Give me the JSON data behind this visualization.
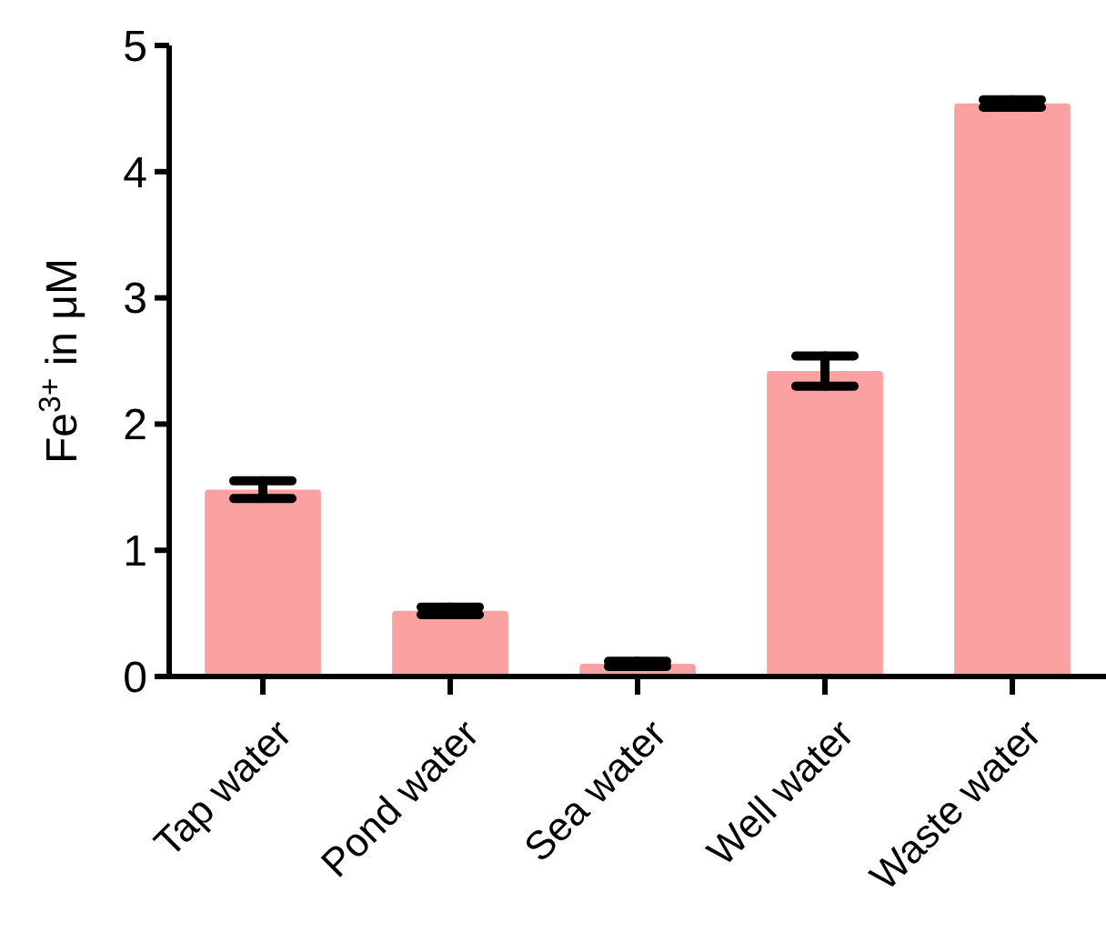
{
  "chart_data": {
    "type": "bar",
    "ylabel": "Fe$^{3+}$ in μM",
    "categories": [
      "Tap water",
      "Pond water",
      "Sea water",
      "Well water",
      "Waste water"
    ],
    "values": [
      1.48,
      0.52,
      0.1,
      2.42,
      4.54
    ],
    "errors": [
      0.07,
      0.03,
      0.02,
      0.12,
      0.03
    ],
    "color": "#fca1a1",
    "ylim": [
      0,
      5
    ],
    "yticks": [
      0,
      1,
      2,
      3,
      4,
      5
    ],
    "grid": false
  }
}
